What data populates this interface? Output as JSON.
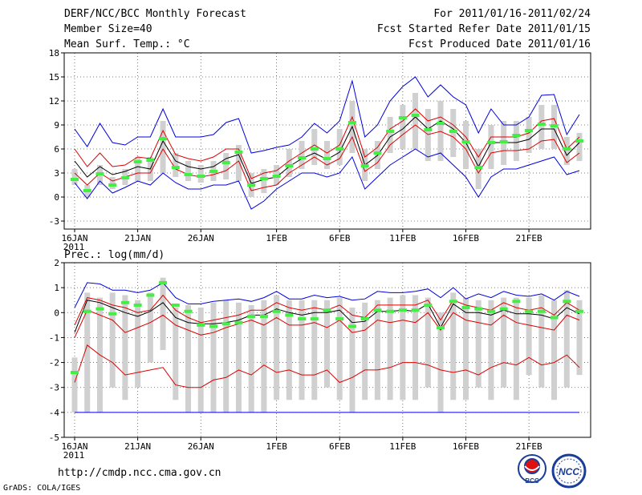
{
  "header": {
    "left": [
      "DERF/NCC/BCC Monthly Forecast",
      "Member Size=40",
      "Mean Surf. Temp.: °C"
    ],
    "right": [
      "For 2011/01/16-2011/02/24",
      "Fcst Started Refer Date 2011/01/15",
      "Fcst Produced Date 2011/01/16"
    ]
  },
  "footer": {
    "url": "http://cmdp.ncc.cma.gov.cn",
    "credit": "GrADS: COLA/IGES",
    "logo_bcc": "BCC",
    "logo_ncc": "NCC"
  },
  "colors": {
    "green": "#44ee44",
    "grey_box": "#d0d0d0",
    "blue": "#0000dd",
    "red": "#dd0000",
    "black": "#000000"
  },
  "chart_data": [
    {
      "type": "line",
      "title": "Mean Surf. Temp.: °C",
      "ylim": [
        -4,
        18
      ],
      "yticks": [
        -3,
        0,
        3,
        6,
        9,
        12,
        15,
        18
      ],
      "xticks": [
        {
          "label": "16JAN",
          "year": "2011"
        },
        {
          "label": "21JAN"
        },
        {
          "label": "26JAN"
        },
        {
          "label": "1FEB"
        },
        {
          "label": "6FEB"
        },
        {
          "label": "11FEB"
        },
        {
          "label": "16FEB"
        },
        {
          "label": "21FEB"
        }
      ],
      "xtick_days": [
        0,
        5,
        10,
        16,
        21,
        26,
        31,
        36
      ],
      "ndays": 40,
      "series": [
        {
          "name": "max",
          "color": "#0000dd",
          "values": [
            8.5,
            6.3,
            9.2,
            6.8,
            6.5,
            7.5,
            7.5,
            11,
            7.5,
            7.5,
            7.5,
            7.8,
            9.3,
            9.8,
            5.5,
            5.8,
            6.2,
            6.5,
            7.5,
            9.2,
            8,
            9.5,
            14.5,
            7.5,
            9,
            12,
            13.8,
            15,
            12.5,
            14,
            12.5,
            11.5,
            8,
            11,
            9,
            9,
            10,
            12.7,
            12.8,
            7.8,
            10.3
          ]
        },
        {
          "name": "upper",
          "color": "#dd0000",
          "values": [
            6,
            3.8,
            5.5,
            3.8,
            4,
            5,
            4.8,
            8.3,
            5.3,
            4.8,
            4.5,
            5,
            6,
            6,
            2.3,
            3,
            3.3,
            4.5,
            5.5,
            6.5,
            5.5,
            6.5,
            10,
            5,
            6.2,
            8.5,
            9.5,
            11,
            9.5,
            10,
            9,
            7.5,
            5,
            7.5,
            7.5,
            7.5,
            8,
            9.5,
            9.8,
            6,
            7.5
          ]
        },
        {
          "name": "mean",
          "color": "#000000",
          "values": [
            4.5,
            2.5,
            3.8,
            2.8,
            3.2,
            3.8,
            3.5,
            7,
            4.5,
            3.8,
            3.5,
            3.8,
            4.8,
            5.3,
            1.7,
            2.2,
            2.5,
            3.8,
            4.8,
            5.5,
            4.7,
            5.6,
            8.8,
            4,
            5.2,
            7.5,
            8.5,
            10,
            8.5,
            9.5,
            8.5,
            6.8,
            3.8,
            6.8,
            6.8,
            6.8,
            7.2,
            8.5,
            8.5,
            5.2,
            6.8
          ]
        },
        {
          "name": "lower",
          "color": "#dd0000",
          "values": [
            3,
            1.5,
            3,
            2,
            2.5,
            3,
            3,
            6,
            3.5,
            2.8,
            2.5,
            2.8,
            3.3,
            4.5,
            0.8,
            1.2,
            1.5,
            3,
            4,
            5,
            4,
            4.8,
            7.5,
            3.2,
            4.3,
            6.5,
            7.8,
            9,
            7.8,
            8.2,
            7.5,
            6,
            3,
            5.5,
            5.8,
            5.8,
            6,
            7,
            7.2,
            4.3,
            5.5
          ]
        },
        {
          "name": "min",
          "color": "#0000dd",
          "values": [
            1.8,
            -0.2,
            2,
            0.5,
            1.2,
            2,
            1.5,
            3,
            1.8,
            1,
            1,
            1.5,
            1.5,
            2,
            -1.5,
            -0.5,
            1,
            2,
            3,
            3,
            2.5,
            3,
            5,
            1,
            2.5,
            4,
            5,
            6,
            5,
            5.5,
            4,
            2.5,
            0,
            2.5,
            3.5,
            3.5,
            4,
            4.5,
            5,
            2.8,
            3.3
          ]
        }
      ],
      "box_low": [
        1.5,
        0,
        1.5,
        1,
        1.5,
        2,
        2,
        3,
        2.5,
        2,
        1.8,
        2,
        2.2,
        2,
        0,
        0.5,
        1.5,
        2.5,
        3.5,
        4,
        3.5,
        4,
        5.5,
        2,
        3.5,
        5.5,
        6,
        6,
        4.5,
        4.5,
        5,
        3.5,
        1,
        3.5,
        4,
        4.5,
        5.5,
        6,
        6,
        4,
        4.5
      ],
      "box_high": [
        3.5,
        1.5,
        4,
        2.5,
        3.5,
        5,
        5,
        9.5,
        5.5,
        4.5,
        4,
        4.5,
        5.5,
        6.5,
        3,
        3.5,
        4,
        6,
        7,
        8.5,
        7,
        8.5,
        12,
        6,
        7,
        10,
        11.5,
        13,
        11,
        12,
        11,
        9.5,
        6,
        9,
        9.5,
        9.5,
        10,
        11.5,
        11.5,
        7.5,
        8
      ],
      "observed": [
        2.2,
        0.8,
        2.9,
        1.5,
        2.4,
        4.4,
        4.6,
        7.3,
        3.7,
        2.8,
        2.6,
        3.2,
        4.3,
        5.6,
        1.5,
        2.3,
        2.6,
        3.9,
        4.9,
        6,
        4.8,
        6,
        9.3,
        3.9,
        5.5,
        8.2,
        9.9,
        10.2,
        8.4,
        9.2,
        8.2,
        6.9,
        3.7,
        6.8,
        6.9,
        7.7,
        8.3,
        9.1,
        8.9,
        6,
        7
      ]
    },
    {
      "type": "line",
      "title": "Prec.: log(mm/d)",
      "ylim": [
        -5,
        2
      ],
      "yticks": [
        -5,
        -4,
        -3,
        -2,
        -1,
        0,
        1,
        2
      ],
      "xticks": [
        {
          "label": "16JAN",
          "year": "2011"
        },
        {
          "label": "21JAN"
        },
        {
          "label": "26JAN"
        },
        {
          "label": "1FEB"
        },
        {
          "label": "6FEB"
        },
        {
          "label": "11FEB"
        },
        {
          "label": "16FEB"
        },
        {
          "label": "21FEB"
        }
      ],
      "xtick_days": [
        0,
        5,
        10,
        16,
        21,
        26,
        31,
        36
      ],
      "ndays": 40,
      "series": [
        {
          "name": "max",
          "color": "#0000dd",
          "values": [
            0.2,
            1.2,
            1.15,
            0.9,
            0.9,
            0.8,
            0.9,
            1.2,
            0.6,
            0.35,
            0.35,
            0.45,
            0.5,
            0.55,
            0.45,
            0.6,
            0.85,
            0.55,
            0.55,
            0.7,
            0.6,
            0.65,
            0.5,
            0.55,
            0.85,
            0.8,
            0.8,
            0.85,
            0.95,
            0.6,
            1,
            0.55,
            0.75,
            0.6,
            0.85,
            0.7,
            0.65,
            0.75,
            0.5,
            0.85,
            0.65
          ]
        },
        {
          "name": "upper",
          "color": "#dd0000",
          "values": [
            -0.5,
            0.6,
            0.5,
            0.3,
            0.2,
            0,
            0.1,
            0.7,
            0.1,
            -0.2,
            -0.4,
            -0.3,
            -0.2,
            -0.1,
            0.1,
            0.1,
            0.4,
            0.2,
            0.1,
            0.2,
            0.1,
            0.3,
            -0.1,
            -0.2,
            0.3,
            0.3,
            0.3,
            0.3,
            0.5,
            -0.3,
            0.5,
            0.3,
            0.2,
            0.1,
            0.4,
            0.2,
            0.1,
            0.2,
            -0.1,
            0.4,
            0.1
          ]
        },
        {
          "name": "mean",
          "color": "#000000",
          "values": [
            -0.8,
            0.5,
            0.4,
            0.2,
            0,
            -0.15,
            0.05,
            0.4,
            -0.2,
            -0.4,
            -0.45,
            -0.45,
            -0.4,
            -0.3,
            -0.1,
            -0.1,
            0.15,
            0,
            -0.1,
            0,
            0,
            0.1,
            -0.4,
            -0.35,
            0.05,
            0.05,
            0.1,
            0.05,
            0.35,
            -0.6,
            0.35,
            0,
            0,
            -0.1,
            0.1,
            -0.05,
            -0.05,
            -0.1,
            -0.25,
            0.2,
            -0.05
          ]
        },
        {
          "name": "lower",
          "color": "#dd0000",
          "values": [
            -1,
            0.1,
            -0.1,
            -0.3,
            -0.8,
            -0.6,
            -0.4,
            -0.1,
            -0.5,
            -0.7,
            -0.9,
            -0.8,
            -0.6,
            -0.45,
            -0.3,
            -0.5,
            -0.2,
            -0.5,
            -0.5,
            -0.4,
            -0.6,
            -0.3,
            -0.8,
            -0.7,
            -0.3,
            -0.4,
            -0.3,
            -0.4,
            0,
            -0.7,
            0,
            -0.3,
            -0.4,
            -0.5,
            -0.1,
            -0.4,
            -0.5,
            -0.6,
            -0.7,
            -0.1,
            -0.3
          ]
        },
        {
          "name": "min",
          "color": "#dd0000",
          "values": [
            -2.8,
            -1.3,
            -1.7,
            -2,
            -2.5,
            -2.4,
            -2.3,
            -2.2,
            -2.9,
            -3,
            -3,
            -2.7,
            -2.6,
            -2.3,
            -2.5,
            -2.1,
            -2.4,
            -2.3,
            -2.5,
            -2.5,
            -2.3,
            -2.8,
            -2.6,
            -2.3,
            -2.3,
            -2.2,
            -2,
            -2,
            -2.1,
            -2.3,
            -2.4,
            -2.3,
            -2.5,
            -2.2,
            -2,
            -2.1,
            -1.8,
            -2.1,
            -2,
            -1.7,
            -2.2
          ]
        }
      ],
      "box_low": [
        -4,
        -4,
        -4,
        -3,
        -3.5,
        -3,
        -2,
        -1.5,
        -3.5,
        -4,
        -4,
        -4,
        -4,
        -4,
        -4,
        -4,
        -3.5,
        -3.5,
        -3.5,
        -3.5,
        -3,
        -3.5,
        -4,
        -3.5,
        -3.5,
        -3.5,
        -3.5,
        -3.5,
        -3,
        -4,
        -3.5,
        -3.5,
        -3,
        -3.5,
        -3,
        -3.5,
        -2.5,
        -3,
        -3.5,
        -3,
        -2.5
      ],
      "box_high": [
        -1.8,
        0.8,
        0.6,
        0.8,
        0.7,
        0.5,
        0.8,
        1.4,
        0.2,
        0.3,
        0.2,
        0.4,
        0.5,
        0.4,
        0.3,
        0.5,
        0.7,
        0.5,
        0.5,
        0.5,
        0.5,
        0.6,
        0.2,
        0.4,
        0.5,
        0.6,
        0.7,
        0.7,
        0.6,
        0,
        0.8,
        0.6,
        0.5,
        0.5,
        0.6,
        0.6,
        0.6,
        0.7,
        0.5,
        0.9,
        0.5
      ],
      "observed": [
        -2.4,
        0.05,
        0.15,
        -0.05,
        0.4,
        0.3,
        0.7,
        1.2,
        0.3,
        0.05,
        -0.5,
        -0.55,
        -0.45,
        -0.4,
        -0.15,
        -0.15,
        0.05,
        -0.1,
        -0.25,
        -0.25,
        0.1,
        -0.25,
        -0.55,
        -0.25,
        0.1,
        0.05,
        0.1,
        0.1,
        0.3,
        -0.6,
        0.45,
        0.2,
        0.15,
        0.05,
        0.15,
        0.45,
        0.05,
        0.05,
        -0.2,
        0.45,
        0.05
      ]
    }
  ]
}
